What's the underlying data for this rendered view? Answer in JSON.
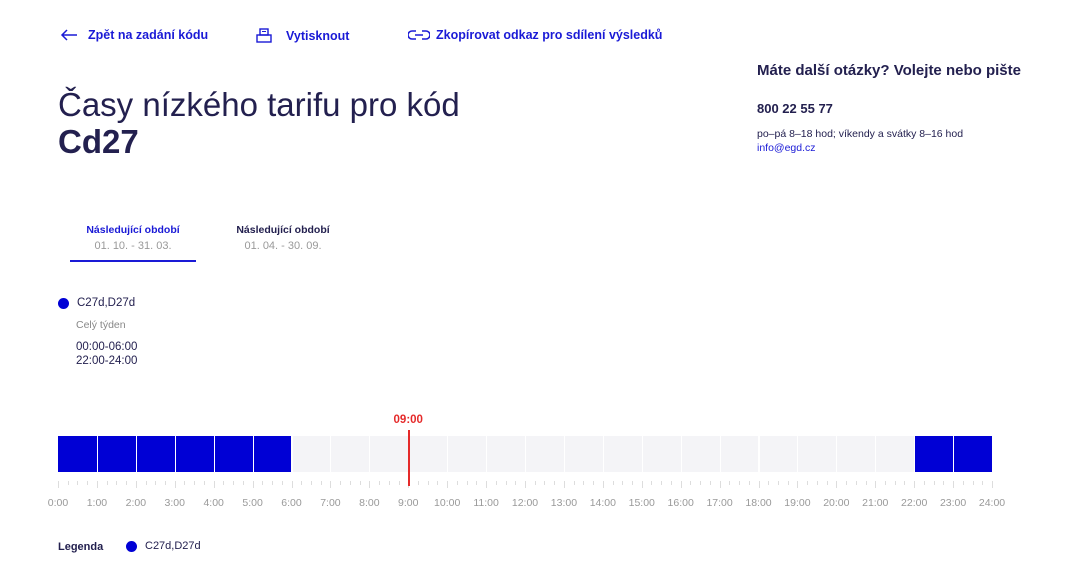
{
  "toolbar": {
    "back_label": "Zpět na zadání kódu",
    "print_label": "Vytisknout",
    "copy_label": "Zkopírovat odkaz pro sdílení výsledků"
  },
  "title": {
    "line1": "Časy nízkého tarifu pro kód",
    "code": "Cd27"
  },
  "contact": {
    "question": "Máte další otázky? Volejte nebo pište",
    "phone": "800 22 55 77",
    "hours": "po–pá 8–18 hod; víkendy a svátky 8–16 hod",
    "email": "info@egd.cz"
  },
  "tabs": [
    {
      "label": "Následující období",
      "dates": "01. 10. - 31. 03.",
      "active": true
    },
    {
      "label": "Následující období",
      "dates": "01. 04. - 30. 09.",
      "active": false
    }
  ],
  "schedule": {
    "tariff": "C27d,D27d",
    "days": "Celý týden",
    "ranges": [
      "00:00-06:00",
      "22:00-24:00"
    ]
  },
  "timeline": {
    "current_time": "09:00",
    "current_hour": 9,
    "low_tariff_hours": [
      0,
      1,
      2,
      3,
      4,
      5,
      22,
      23
    ],
    "hour_labels": [
      "0:00",
      "1:00",
      "2:00",
      "3:00",
      "4:00",
      "5:00",
      "6:00",
      "7:00",
      "8:00",
      "9:00",
      "10:00",
      "11:00",
      "12:00",
      "13:00",
      "14:00",
      "15:00",
      "16:00",
      "17:00",
      "18:00",
      "19:00",
      "20:00",
      "21:00",
      "22:00",
      "23:00",
      "24:00"
    ]
  },
  "legend": {
    "title": "Legenda",
    "item": "C27d,D27d"
  },
  "colors": {
    "accent": "#1a1ad6",
    "low_tariff": "#0000d5",
    "empty": "#f4f4f7",
    "now": "#e52a2a",
    "text": "#23204f"
  }
}
